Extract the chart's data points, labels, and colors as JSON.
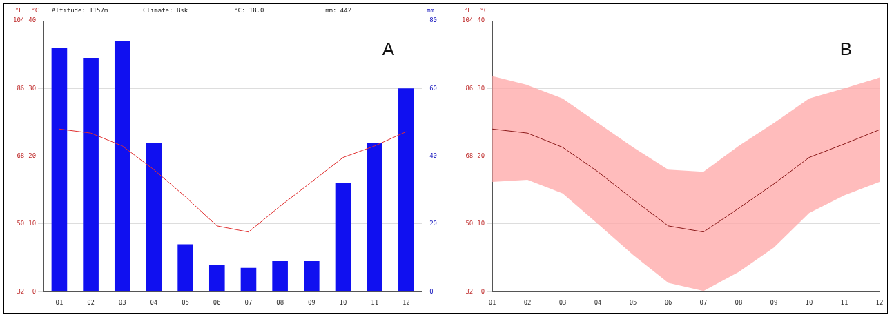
{
  "chart_data": [
    {
      "type": "bar",
      "title": "A",
      "annotations": [
        "Altitude: 1157m",
        "Climate: Bsk",
        "°C: 18.0",
        "mm: 442"
      ],
      "categories": [
        "01",
        "02",
        "03",
        "04",
        "05",
        "06",
        "07",
        "08",
        "09",
        "10",
        "11",
        "12"
      ],
      "series": [
        {
          "axis": "y2",
          "color": "#1010f0",
          "values": [
            72,
            69,
            74,
            44,
            14,
            8,
            7,
            9,
            9,
            32,
            44,
            60
          ]
        },
        {
          "type": "line",
          "axis": "y",
          "color": "#e03030",
          "values": [
            24,
            23.4,
            21.5,
            18,
            14,
            9.7,
            8.8,
            12.6,
            16.2,
            19.8,
            21.5,
            23.6
          ]
        }
      ],
      "ylabel": "°C",
      "ylim": [
        0,
        40
      ],
      "yticks": [
        0,
        10,
        20,
        30,
        40
      ],
      "y2label": "mm",
      "y2lim": [
        0,
        80
      ],
      "y2ticks": [
        0,
        20,
        40,
        60,
        80
      ],
      "y3label": "°F",
      "y3lim": [
        32,
        104
      ],
      "y3ticks": [
        32,
        50,
        68,
        86,
        104
      ],
      "grid": "y",
      "legend": false,
      "marker": "none"
    },
    {
      "type": "line",
      "title": "B",
      "categories": [
        "01",
        "02",
        "03",
        "04",
        "05",
        "06",
        "07",
        "08",
        "09",
        "10",
        "11",
        "12"
      ],
      "series": [
        {
          "axis": "y",
          "color": "#8b1a1a",
          "values": [
            24,
            23.4,
            21.3,
            17.7,
            13.6,
            9.7,
            8.8,
            12.3,
            15.9,
            19.8,
            21.8,
            23.9
          ],
          "lower": [
            16.2,
            16.5,
            14.5,
            10,
            5.4,
            1.3,
            0.1,
            2.9,
            6.5,
            11.6,
            14.2,
            16.2
          ],
          "upper": [
            31.8,
            30.5,
            28.5,
            24.9,
            21.3,
            18,
            17.7,
            21.5,
            24.9,
            28.5,
            30,
            31.6
          ]
        }
      ],
      "ylabel": "°C",
      "ylim": [
        0,
        40
      ],
      "yticks": [
        0,
        10,
        20,
        30,
        40
      ],
      "y3label": "°F",
      "y3lim": [
        32,
        104
      ],
      "y3ticks": [
        32,
        50,
        68,
        86,
        104
      ],
      "grid": "y",
      "legend": false,
      "marker": "none"
    }
  ]
}
